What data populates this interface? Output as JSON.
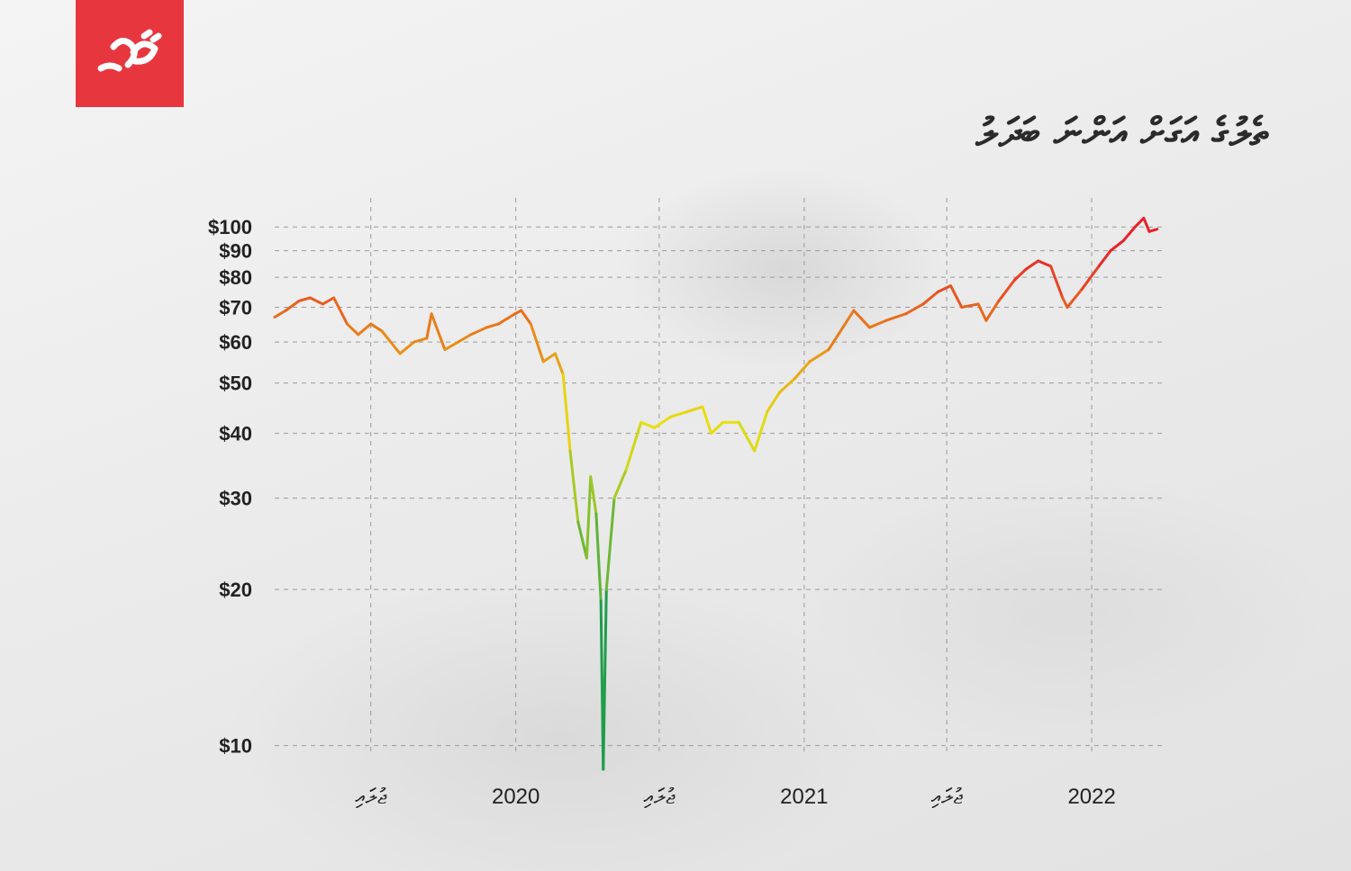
{
  "brand": {
    "color": "#e8363f"
  },
  "title": "ތެލުގެ އަގަށް އަންނަ ބަދަލު",
  "chart_data": {
    "type": "line",
    "title": "ތެލުގެ އަގަށް އަންނަ ބަދަލު",
    "xlabel": "",
    "ylabel": "",
    "y_scale": "log",
    "ylim": [
      9,
      105
    ],
    "xlim": [
      "2019-03-01",
      "2022-03-31"
    ],
    "grid": true,
    "y_ticks": [
      10,
      20,
      30,
      40,
      50,
      60,
      70,
      80,
      90,
      100
    ],
    "y_tick_labels": [
      "$10",
      "$20",
      "$30",
      "$40",
      "$50",
      "$60",
      "$70",
      "$80",
      "$90",
      "$100"
    ],
    "x_ticks": [
      "2019-07-01",
      "2020-01-01",
      "2020-07-01",
      "2021-01-01",
      "2021-07-01",
      "2022-01-01"
    ],
    "x_tick_labels": [
      "ޖުލައި",
      "2020",
      "ޖުލައި",
      "2021",
      "ޖުލައި",
      "2022"
    ],
    "color_scale": {
      "low": "#1e9e4a",
      "mid": "#e8e010",
      "high": "#e8202a"
    },
    "series": [
      {
        "points": [
          [
            "2019-03-01",
            67
          ],
          [
            "2019-03-15",
            69
          ],
          [
            "2019-04-01",
            72
          ],
          [
            "2019-04-15",
            73
          ],
          [
            "2019-05-01",
            71
          ],
          [
            "2019-05-15",
            73
          ],
          [
            "2019-06-01",
            65
          ],
          [
            "2019-06-15",
            62
          ],
          [
            "2019-07-01",
            65
          ],
          [
            "2019-07-15",
            63
          ],
          [
            "2019-08-07",
            57
          ],
          [
            "2019-08-25",
            60
          ],
          [
            "2019-09-10",
            61
          ],
          [
            "2019-09-16",
            68
          ],
          [
            "2019-10-03",
            58
          ],
          [
            "2019-10-20",
            60
          ],
          [
            "2019-11-05",
            62
          ],
          [
            "2019-11-25",
            64
          ],
          [
            "2019-12-10",
            65
          ],
          [
            "2019-12-31",
            68
          ],
          [
            "2020-01-08",
            69
          ],
          [
            "2020-01-20",
            65
          ],
          [
            "2020-02-05",
            55
          ],
          [
            "2020-02-20",
            57
          ],
          [
            "2020-03-01",
            52
          ],
          [
            "2020-03-10",
            37
          ],
          [
            "2020-03-20",
            27
          ],
          [
            "2020-03-31",
            23
          ],
          [
            "2020-04-05",
            33
          ],
          [
            "2020-04-12",
            28
          ],
          [
            "2020-04-18",
            19
          ],
          [
            "2020-04-21",
            9
          ],
          [
            "2020-04-25",
            20
          ],
          [
            "2020-05-05",
            30
          ],
          [
            "2020-05-20",
            34
          ],
          [
            "2020-06-08",
            42
          ],
          [
            "2020-06-25",
            41
          ],
          [
            "2020-07-15",
            43
          ],
          [
            "2020-08-05",
            44
          ],
          [
            "2020-08-25",
            45
          ],
          [
            "2020-09-05",
            40
          ],
          [
            "2020-09-20",
            42
          ],
          [
            "2020-10-10",
            42
          ],
          [
            "2020-10-30",
            37
          ],
          [
            "2020-11-15",
            44
          ],
          [
            "2020-12-01",
            48
          ],
          [
            "2020-12-20",
            51
          ],
          [
            "2021-01-08",
            55
          ],
          [
            "2021-02-01",
            58
          ],
          [
            "2021-03-05",
            69
          ],
          [
            "2021-03-25",
            64
          ],
          [
            "2021-04-15",
            66
          ],
          [
            "2021-05-10",
            68
          ],
          [
            "2021-06-01",
            71
          ],
          [
            "2021-06-20",
            75
          ],
          [
            "2021-07-06",
            77
          ],
          [
            "2021-07-20",
            70
          ],
          [
            "2021-08-10",
            71
          ],
          [
            "2021-08-20",
            66
          ],
          [
            "2021-09-05",
            72
          ],
          [
            "2021-09-25",
            79
          ],
          [
            "2021-10-10",
            83
          ],
          [
            "2021-10-25",
            86
          ],
          [
            "2021-11-10",
            84
          ],
          [
            "2021-11-25",
            73
          ],
          [
            "2021-12-01",
            70
          ],
          [
            "2021-12-20",
            76
          ],
          [
            "2022-01-10",
            84
          ],
          [
            "2022-01-25",
            90
          ],
          [
            "2022-02-10",
            94
          ],
          [
            "2022-02-25",
            100
          ],
          [
            "2022-03-08",
            104
          ],
          [
            "2022-03-15",
            98
          ],
          [
            "2022-03-25",
            99
          ]
        ]
      }
    ]
  }
}
